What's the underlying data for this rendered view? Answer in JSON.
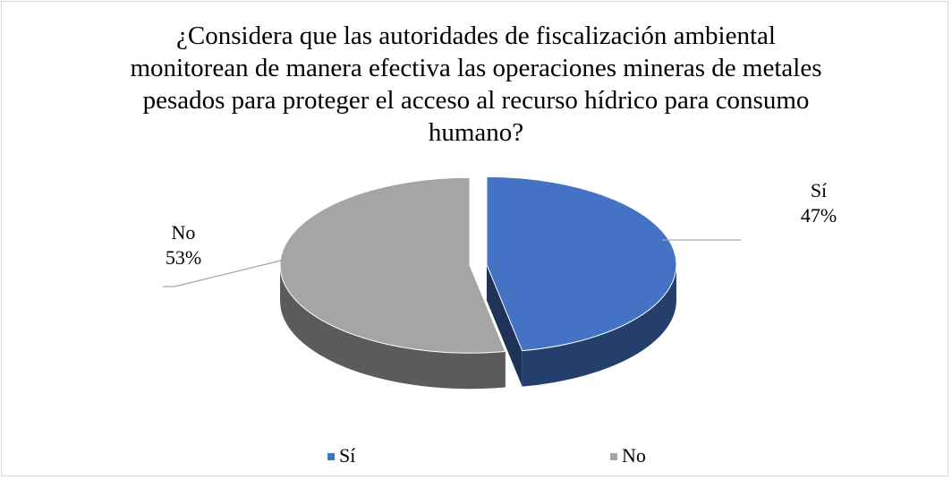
{
  "chart_data": {
    "type": "pie",
    "title": "¿Considera que las autoridades de fiscalización ambiental monitorean de manera efectiva las operaciones mineras de metales pesados para proteger el acceso al recurso hídrico para consumo humano?",
    "categories": [
      "Sí",
      "No"
    ],
    "values": [
      47,
      53
    ],
    "value_labels": [
      "47%",
      "53%"
    ],
    "colors": [
      "#4472c4",
      "#a5a5a5"
    ],
    "legend": "bottom"
  }
}
